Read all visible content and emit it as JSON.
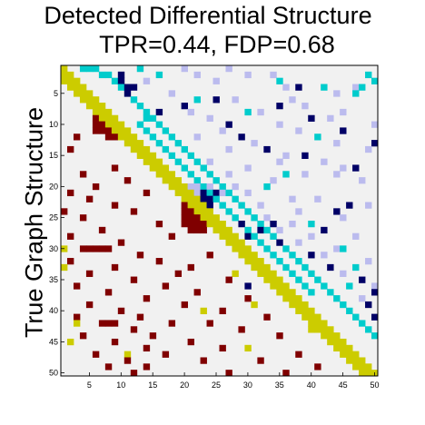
{
  "chart_data": {
    "type": "heatmap",
    "title": "Detected Differential Structure",
    "subtitle": "TPR=0.44, FDP=0.68",
    "ylabel": "True Graph Structure",
    "xlabel": "",
    "size": 50,
    "x_ticks": [
      5,
      10,
      15,
      20,
      25,
      30,
      35,
      40,
      45,
      50
    ],
    "y_ticks": [
      5,
      10,
      15,
      20,
      25,
      30,
      35,
      40,
      45,
      50
    ],
    "colors": {
      "background": "#f1f1f1",
      "diagonal": "#cccc00",
      "true_edge": "#800000",
      "detected_true_positive": "#00cccc",
      "detected_false_positive_dark": "#000066",
      "detected_false_positive_light": "#bbbbee"
    },
    "lower_true_edges": [
      [
        10,
        6
      ],
      [
        10,
        7
      ],
      [
        11,
        6
      ],
      [
        11,
        7
      ],
      [
        11,
        8
      ],
      [
        12,
        8
      ],
      [
        12,
        9
      ],
      [
        9,
        6
      ],
      [
        9,
        7
      ],
      [
        22,
        20
      ],
      [
        23,
        20
      ],
      [
        23,
        21
      ],
      [
        24,
        20
      ],
      [
        24,
        21
      ],
      [
        24,
        22
      ],
      [
        25,
        20
      ],
      [
        25,
        21
      ],
      [
        25,
        22
      ],
      [
        25,
        23
      ],
      [
        26,
        20
      ],
      [
        26,
        21
      ],
      [
        26,
        22
      ],
      [
        26,
        23
      ],
      [
        27,
        21
      ],
      [
        27,
        22
      ],
      [
        27,
        23
      ],
      [
        23,
        22
      ],
      [
        24,
        23
      ],
      [
        12,
        3
      ],
      [
        14,
        2
      ],
      [
        17,
        9
      ],
      [
        18,
        4
      ],
      [
        19,
        11
      ],
      [
        20,
        6
      ],
      [
        21,
        2
      ],
      [
        21,
        14
      ],
      [
        22,
        5
      ],
      [
        23,
        9
      ],
      [
        24,
        1
      ],
      [
        24,
        12
      ],
      [
        25,
        4
      ],
      [
        26,
        16
      ],
      [
        27,
        7
      ],
      [
        28,
        2
      ],
      [
        28,
        18
      ],
      [
        29,
        10
      ],
      [
        30,
        4
      ],
      [
        30,
        5
      ],
      [
        30,
        6
      ],
      [
        30,
        7
      ],
      [
        30,
        8
      ],
      [
        31,
        13
      ],
      [
        31,
        24
      ],
      [
        32,
        2
      ],
      [
        32,
        16
      ],
      [
        33,
        9
      ],
      [
        33,
        21
      ],
      [
        34,
        5
      ],
      [
        34,
        19
      ],
      [
        35,
        12
      ],
      [
        35,
        27
      ],
      [
        36,
        3
      ],
      [
        36,
        17
      ],
      [
        37,
        8
      ],
      [
        37,
        22
      ],
      [
        38,
        14
      ],
      [
        38,
        30
      ],
      [
        39,
        5
      ],
      [
        39,
        20
      ],
      [
        40,
        10
      ],
      [
        40,
        26
      ],
      [
        41,
        3
      ],
      [
        41,
        13
      ],
      [
        41,
        33
      ],
      [
        42,
        7
      ],
      [
        42,
        8
      ],
      [
        42,
        9
      ],
      [
        42,
        18
      ],
      [
        42,
        24
      ],
      [
        43,
        12
      ],
      [
        43,
        29
      ],
      [
        44,
        4
      ],
      [
        44,
        15
      ],
      [
        44,
        35
      ],
      [
        45,
        9
      ],
      [
        45,
        21
      ],
      [
        46,
        14
      ],
      [
        46,
        26
      ],
      [
        47,
        6
      ],
      [
        47,
        17
      ],
      [
        47,
        38
      ],
      [
        48,
        11
      ],
      [
        48,
        23
      ],
      [
        48,
        32
      ],
      [
        49,
        8
      ],
      [
        49,
        14
      ],
      [
        49,
        41
      ],
      [
        50,
        12
      ],
      [
        50,
        27
      ],
      [
        50,
        36
      ]
    ],
    "lower_detected_tp": [
      [
        30,
        1
      ],
      [
        33,
        1
      ],
      [
        42,
        3
      ],
      [
        47,
        11
      ],
      [
        45,
        2
      ],
      [
        40,
        23
      ],
      [
        34,
        28
      ],
      [
        39,
        31
      ],
      [
        46,
        30
      ],
      [
        43,
        40
      ]
    ],
    "upper_tp": [
      [
        1,
        4
      ],
      [
        1,
        6
      ],
      [
        2,
        7
      ],
      [
        3,
        9
      ],
      [
        4,
        10
      ],
      [
        5,
        11
      ],
      [
        6,
        12
      ],
      [
        7,
        13
      ],
      [
        8,
        14
      ],
      [
        9,
        15
      ],
      [
        10,
        16
      ],
      [
        11,
        17
      ],
      [
        12,
        18
      ],
      [
        13,
        19
      ],
      [
        14,
        20
      ],
      [
        15,
        21
      ],
      [
        16,
        22
      ],
      [
        17,
        23
      ],
      [
        18,
        24
      ],
      [
        19,
        25
      ],
      [
        20,
        26
      ],
      [
        21,
        27
      ],
      [
        22,
        28
      ],
      [
        23,
        29
      ],
      [
        24,
        30
      ],
      [
        25,
        31
      ],
      [
        26,
        32
      ],
      [
        27,
        33
      ],
      [
        28,
        34
      ],
      [
        29,
        35
      ],
      [
        30,
        36
      ],
      [
        31,
        37
      ],
      [
        32,
        38
      ],
      [
        33,
        39
      ],
      [
        34,
        40
      ],
      [
        35,
        41
      ],
      [
        36,
        42
      ],
      [
        37,
        43
      ],
      [
        38,
        44
      ],
      [
        39,
        45
      ],
      [
        40,
        46
      ],
      [
        41,
        47
      ],
      [
        42,
        48
      ],
      [
        43,
        49
      ],
      [
        44,
        50
      ],
      [
        9,
        14
      ],
      [
        10,
        13
      ],
      [
        11,
        14
      ],
      [
        12,
        15
      ],
      [
        13,
        16
      ],
      [
        14,
        17
      ],
      [
        15,
        18
      ],
      [
        16,
        19
      ],
      [
        17,
        20
      ],
      [
        18,
        21
      ],
      [
        19,
        22
      ],
      [
        20,
        23
      ],
      [
        21,
        24
      ],
      [
        22,
        25
      ],
      [
        23,
        26
      ],
      [
        24,
        27
      ],
      [
        25,
        28
      ],
      [
        26,
        29
      ],
      [
        27,
        30
      ],
      [
        28,
        31
      ],
      [
        29,
        32
      ],
      [
        30,
        33
      ],
      [
        31,
        34
      ],
      [
        32,
        35
      ],
      [
        33,
        36
      ],
      [
        34,
        37
      ],
      [
        35,
        38
      ],
      [
        36,
        39
      ],
      [
        37,
        40
      ],
      [
        1,
        5
      ],
      [
        2,
        8
      ],
      [
        3,
        10
      ],
      [
        1,
        13
      ],
      [
        2,
        16
      ],
      [
        3,
        35
      ],
      [
        4,
        42
      ],
      [
        6,
        22
      ],
      [
        8,
        30
      ],
      [
        12,
        41
      ],
      [
        18,
        36
      ],
      [
        20,
        33
      ],
      [
        26,
        40
      ],
      [
        30,
        45
      ],
      [
        33,
        47
      ],
      [
        36,
        46
      ],
      [
        2,
        49
      ],
      [
        3,
        50
      ],
      [
        4,
        48
      ],
      [
        5,
        47
      ]
    ],
    "upper_fp_dark": [
      [
        2,
        10
      ],
      [
        3,
        10
      ],
      [
        4,
        11
      ],
      [
        5,
        11
      ],
      [
        4,
        12
      ],
      [
        7,
        20
      ],
      [
        6,
        25
      ],
      [
        9,
        40
      ],
      [
        11,
        45
      ],
      [
        12,
        29
      ],
      [
        14,
        33
      ],
      [
        15,
        39
      ],
      [
        17,
        47
      ],
      [
        21,
        21
      ],
      [
        22,
        22
      ],
      [
        22,
        23
      ],
      [
        21,
        23
      ],
      [
        22,
        24
      ],
      [
        21,
        25
      ],
      [
        23,
        24
      ],
      [
        26,
        29
      ],
      [
        27,
        32
      ],
      [
        29,
        35
      ],
      [
        31,
        40
      ],
      [
        33,
        43
      ],
      [
        35,
        48
      ],
      [
        37,
        50
      ],
      [
        39,
        49
      ],
      [
        41,
        50
      ],
      [
        8,
        16
      ],
      [
        4,
        38
      ],
      [
        7,
        35
      ],
      [
        10,
        27
      ],
      [
        24,
        44
      ],
      [
        28,
        30
      ],
      [
        36,
        30
      ],
      [
        26,
        34
      ],
      [
        27,
        42
      ],
      [
        23,
        46
      ],
      [
        13,
        50
      ]
    ],
    "upper_fp_light": [
      [
        1,
        20
      ],
      [
        2,
        22
      ],
      [
        2,
        30
      ],
      [
        3,
        14
      ],
      [
        3,
        25
      ],
      [
        4,
        36
      ],
      [
        5,
        18
      ],
      [
        5,
        44
      ],
      [
        6,
        28
      ],
      [
        7,
        39
      ],
      [
        8,
        21
      ],
      [
        8,
        32
      ],
      [
        9,
        24
      ],
      [
        9,
        43
      ],
      [
        10,
        35
      ],
      [
        11,
        26
      ],
      [
        11,
        38
      ],
      [
        12,
        22
      ],
      [
        13,
        31
      ],
      [
        13,
        44
      ],
      [
        14,
        27
      ],
      [
        15,
        36
      ],
      [
        16,
        24
      ],
      [
        16,
        42
      ],
      [
        17,
        30
      ],
      [
        17,
        45
      ],
      [
        18,
        27
      ],
      [
        18,
        39
      ],
      [
        19,
        22
      ],
      [
        19,
        34
      ],
      [
        19,
        48
      ],
      [
        20,
        21
      ],
      [
        20,
        22
      ],
      [
        20,
        23
      ],
      [
        20,
        24
      ],
      [
        21,
        22
      ],
      [
        21,
        26
      ],
      [
        20,
        28
      ],
      [
        21,
        30
      ],
      [
        22,
        37
      ],
      [
        23,
        32
      ],
      [
        23,
        49
      ],
      [
        24,
        38
      ],
      [
        25,
        33
      ],
      [
        25,
        45
      ],
      [
        26,
        37
      ],
      [
        27,
        35
      ],
      [
        28,
        40
      ],
      [
        28,
        47
      ],
      [
        29,
        38
      ],
      [
        30,
        44
      ],
      [
        31,
        42
      ],
      [
        32,
        49
      ],
      [
        34,
        45
      ],
      [
        36,
        50
      ],
      [
        38,
        48
      ],
      [
        1,
        27
      ],
      [
        2,
        34
      ],
      [
        4,
        47
      ],
      [
        6,
        37
      ],
      [
        8,
        45
      ],
      [
        10,
        50
      ],
      [
        14,
        49
      ],
      [
        16,
        35
      ],
      [
        18,
        44
      ],
      [
        22,
        41
      ]
    ]
  }
}
